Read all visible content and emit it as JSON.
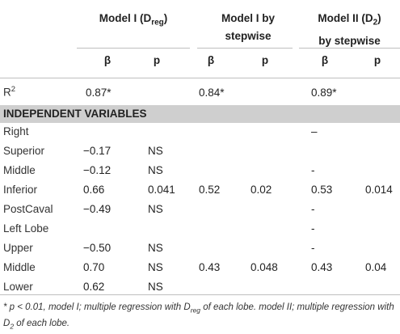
{
  "headers": {
    "model1": {
      "main": "Model I (D",
      "sub": "reg",
      "close": ")"
    },
    "model1_stepwise": {
      "line1": "Model I by",
      "line2": "stepwise"
    },
    "model2": {
      "line1_main": "Model II (D",
      "line1_sub": "2",
      "line1_close": ")",
      "line2": "by stepwise"
    }
  },
  "subheaders": [
    "β",
    "p",
    "β",
    "p",
    "β",
    "p"
  ],
  "r2": {
    "label": "R",
    "sup": "2",
    "values": [
      "0.87*",
      "0.84*",
      "0.89*"
    ]
  },
  "section_label": "INDEPENDENT VARIABLES",
  "rows": [
    {
      "label": "Right",
      "b1": "",
      "p1": "",
      "b2": "",
      "p2": "",
      "b3": "–",
      "p3": ""
    },
    {
      "label": "Superior",
      "b1": "−0.17",
      "p1": "NS",
      "b2": "",
      "p2": "",
      "b3": "",
      "p3": ""
    },
    {
      "label": "Middle",
      "b1": "−0.12",
      "p1": "NS",
      "b2": "",
      "p2": "",
      "b3": "-",
      "p3": ""
    },
    {
      "label": "Inferior",
      "b1": "0.66",
      "p1": "0.041",
      "b2": "0.52",
      "p2": "0.02",
      "b3": "0.53",
      "p3": "0.014"
    },
    {
      "label": "PostCaval",
      "b1": "−0.49",
      "p1": "NS",
      "b2": "",
      "p2": "",
      "b3": "-",
      "p3": ""
    },
    {
      "label": "Left Lobe",
      "b1": "",
      "p1": "",
      "b2": "",
      "p2": "",
      "b3": "-",
      "p3": ""
    },
    {
      "label": "Upper",
      "b1": "−0.50",
      "p1": "NS",
      "b2": "",
      "p2": "",
      "b3": "-",
      "p3": ""
    },
    {
      "label": "Middle",
      "b1": "0.70",
      "p1": "NS",
      "b2": "0.43",
      "p2": "0.048",
      "b3": "0.43",
      "p3": "0.04"
    },
    {
      "label": "Lower",
      "b1": "0.62",
      "p1": "NS",
      "b2": "",
      "p2": "",
      "b3": "",
      "p3": ""
    }
  ],
  "footnote": {
    "part1": "* p < 0.01, model I; multiple regression with D",
    "sub1": "reg",
    "part2": " of each lobe. model II; multiple regression with D",
    "sub2": "2",
    "part3": " of each lobe."
  }
}
